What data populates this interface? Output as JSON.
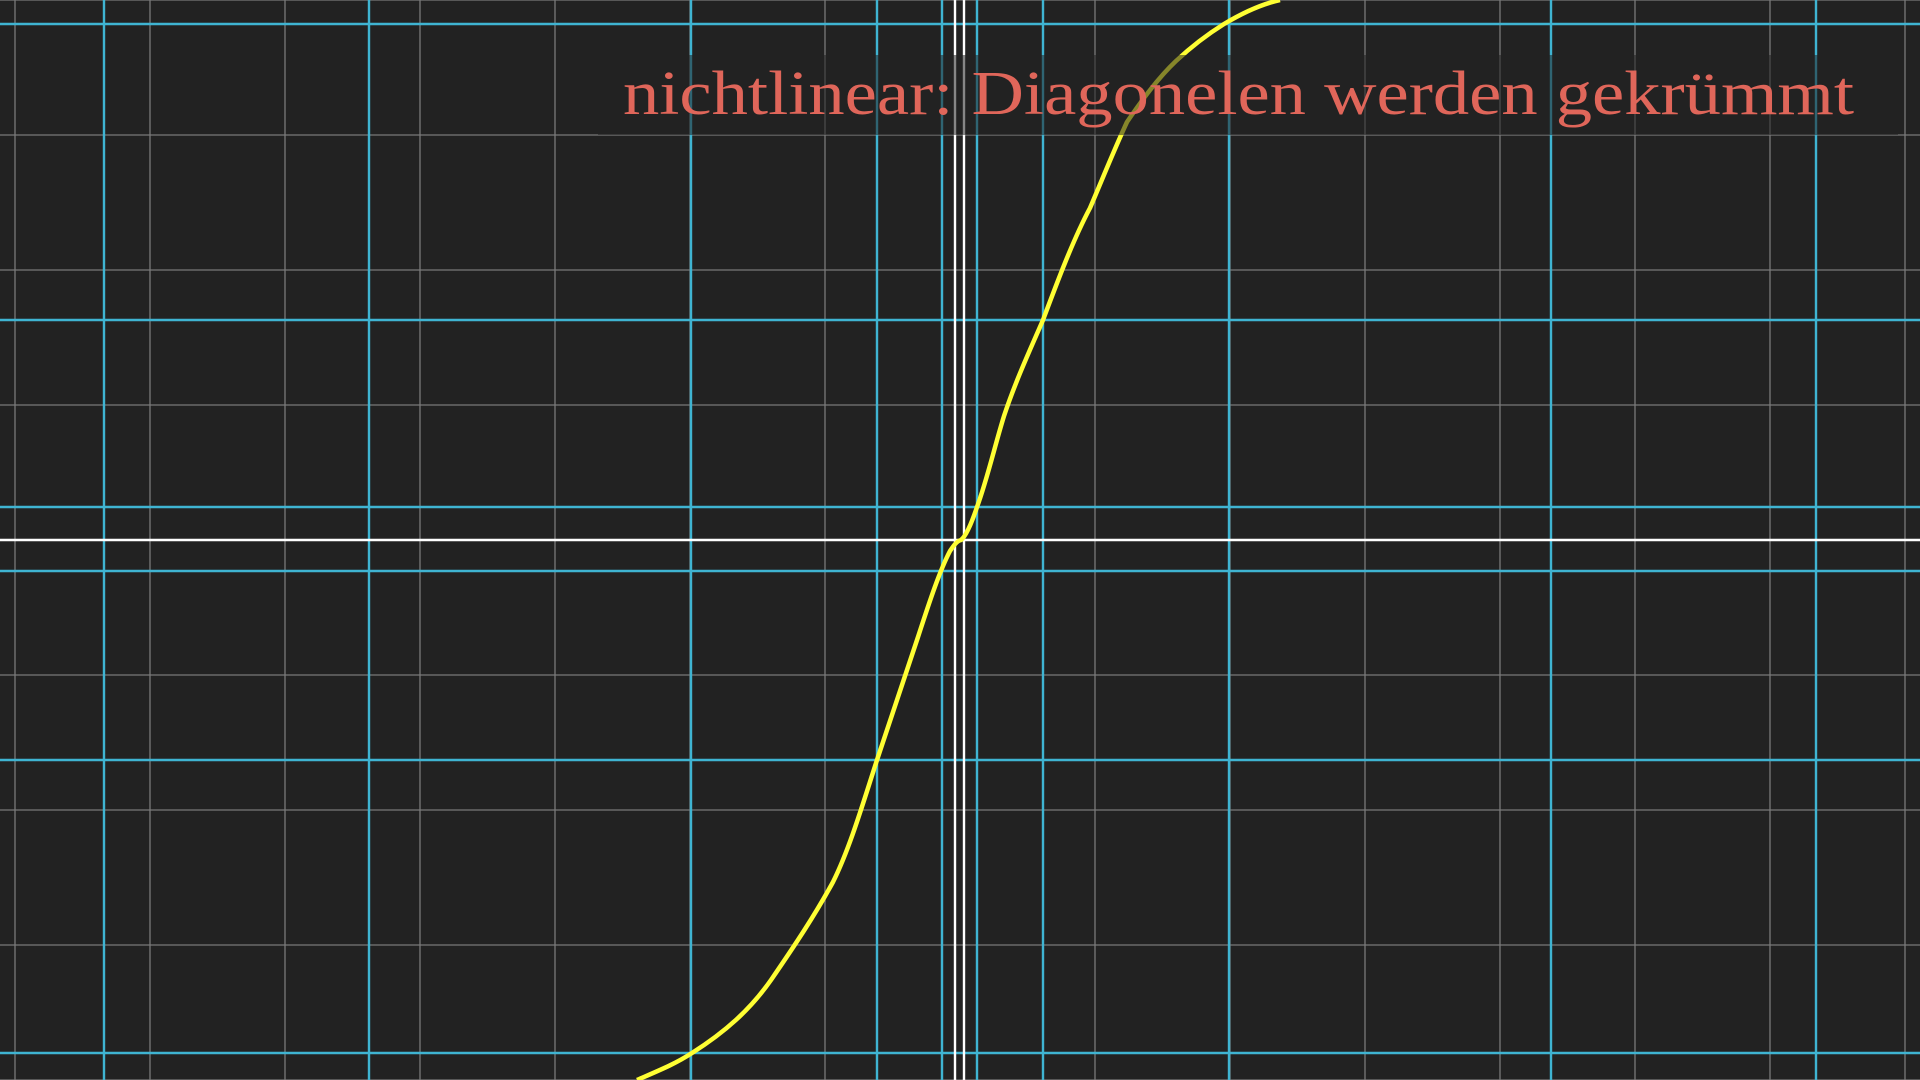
{
  "title": "nichtlinear: Diagonelen werden gekrümmt"
}
